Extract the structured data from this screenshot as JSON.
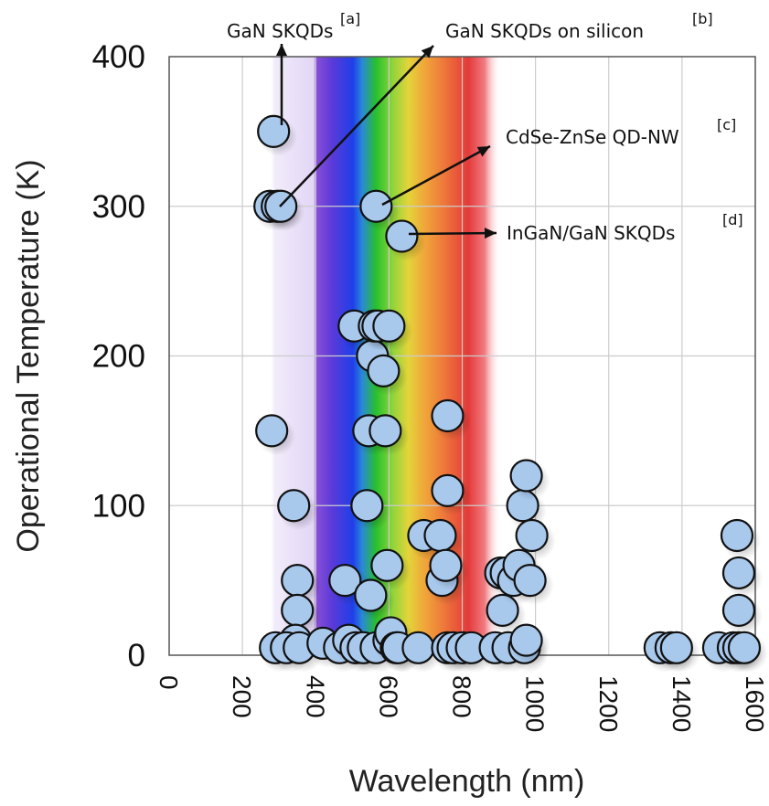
{
  "chart_data": {
    "type": "scatter",
    "title": "",
    "xlabel": "Wavelength (nm)",
    "ylabel": "Operational Temperature (K)",
    "xlim": [
      0,
      1600
    ],
    "ylim": [
      0,
      400
    ],
    "x_ticks": [
      "0",
      "200",
      "400",
      "600",
      "800",
      "1000",
      "1200",
      "1400",
      "1600"
    ],
    "y_ticks": [
      "0",
      "100",
      "200",
      "300",
      "400"
    ],
    "grid": true,
    "background": "visible spectrum color bands between about 280 nm and 900 nm",
    "colors": {
      "marker_fill": "#a8c8ec",
      "marker_edge": "#111111",
      "grid": "#cccccc",
      "frame": "#555555"
    },
    "points": [
      [
        285,
        350
      ],
      [
        275,
        300
      ],
      [
        295,
        300
      ],
      [
        305,
        300
      ],
      [
        280,
        150
      ],
      [
        340,
        100
      ],
      [
        350,
        50
      ],
      [
        350,
        30
      ],
      [
        345,
        10
      ],
      [
        290,
        5
      ],
      [
        320,
        5
      ],
      [
        355,
        5
      ],
      [
        420,
        8
      ],
      [
        465,
        5
      ],
      [
        480,
        50
      ],
      [
        490,
        10
      ],
      [
        505,
        220
      ],
      [
        510,
        5
      ],
      [
        530,
        5
      ],
      [
        540,
        100
      ],
      [
        545,
        150
      ],
      [
        550,
        40
      ],
      [
        555,
        200
      ],
      [
        560,
        220
      ],
      [
        565,
        5
      ],
      [
        565,
        300
      ],
      [
        570,
        220
      ],
      [
        585,
        190
      ],
      [
        590,
        150
      ],
      [
        595,
        60
      ],
      [
        600,
        220
      ],
      [
        600,
        10
      ],
      [
        605,
        15
      ],
      [
        620,
        5
      ],
      [
        625,
        5
      ],
      [
        635,
        280
      ],
      [
        680,
        5
      ],
      [
        695,
        80
      ],
      [
        740,
        80
      ],
      [
        745,
        50
      ],
      [
        755,
        60
      ],
      [
        760,
        160
      ],
      [
        760,
        110
      ],
      [
        760,
        5
      ],
      [
        775,
        5
      ],
      [
        800,
        5
      ],
      [
        825,
        5
      ],
      [
        890,
        5
      ],
      [
        905,
        55
      ],
      [
        910,
        30
      ],
      [
        920,
        55
      ],
      [
        925,
        5
      ],
      [
        940,
        50
      ],
      [
        955,
        60
      ],
      [
        965,
        100
      ],
      [
        970,
        5
      ],
      [
        975,
        120
      ],
      [
        975,
        10
      ],
      [
        985,
        50
      ],
      [
        990,
        80
      ],
      [
        1340,
        5
      ],
      [
        1370,
        5
      ],
      [
        1385,
        5
      ],
      [
        1500,
        5
      ],
      [
        1540,
        5
      ],
      [
        1550,
        80
      ],
      [
        1555,
        55
      ],
      [
        1555,
        30
      ],
      [
        1555,
        5
      ],
      [
        1570,
        5
      ]
    ],
    "annotations": [
      {
        "text": "GaN SKQDs",
        "ref": "[a]"
      },
      {
        "text": "GaN SKQDs on silicon",
        "ref": "[b]"
      },
      {
        "text": "CdSe-ZnSe QD-NW",
        "ref": "[c]"
      },
      {
        "text": "InGaN/GaN SKQDs",
        "ref": "[d]"
      }
    ]
  }
}
